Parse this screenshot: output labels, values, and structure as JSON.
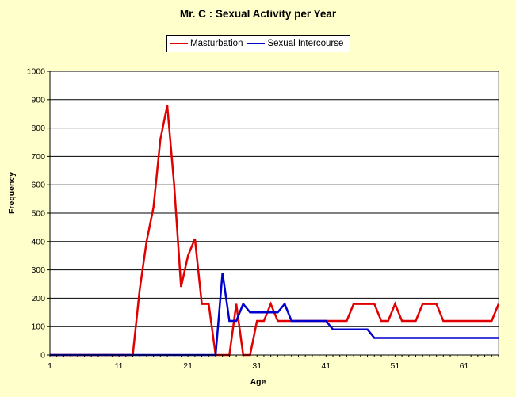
{
  "chart_data": {
    "type": "line",
    "title": "Mr. C :  Sexual Activity per Year",
    "xlabel": "Age",
    "ylabel": "Frequency",
    "xlim": [
      1,
      66
    ],
    "ylim": [
      0,
      1000
    ],
    "x_ticks": [
      1,
      11,
      21,
      31,
      41,
      51,
      61
    ],
    "y_ticks": [
      0,
      100,
      200,
      300,
      400,
      500,
      600,
      700,
      800,
      900,
      1000
    ],
    "y_tick_labels": [
      "0",
      "100",
      "200",
      "300",
      "400",
      "500",
      "600",
      "700",
      "800",
      "900",
      "1000"
    ],
    "grid": "horizontal",
    "legend_position": "top-center",
    "series": [
      {
        "name": "Masturbation",
        "color": "#E00000",
        "x": [
          1,
          2,
          3,
          4,
          5,
          6,
          7,
          8,
          9,
          10,
          11,
          12,
          13,
          14,
          15,
          16,
          17,
          18,
          19,
          20,
          21,
          22,
          23,
          24,
          25,
          26,
          27,
          28,
          29,
          30,
          31,
          32,
          33,
          34,
          35,
          36,
          37,
          38,
          39,
          40,
          41,
          42,
          43,
          44,
          45,
          46,
          47,
          48,
          49,
          50,
          51,
          52,
          53,
          54,
          55,
          56,
          57,
          58,
          59,
          60,
          61,
          62,
          63,
          64,
          65,
          66
        ],
        "values": [
          0,
          0,
          0,
          0,
          0,
          0,
          0,
          0,
          0,
          0,
          0,
          0,
          0,
          230,
          400,
          520,
          760,
          880,
          600,
          240,
          350,
          410,
          180,
          180,
          0,
          0,
          0,
          180,
          0,
          0,
          120,
          120,
          180,
          120,
          120,
          120,
          120,
          120,
          120,
          120,
          120,
          120,
          120,
          120,
          180,
          180,
          180,
          180,
          120,
          120,
          180,
          120,
          120,
          120,
          180,
          180,
          180,
          120,
          120,
          120,
          120,
          120,
          120,
          120,
          120,
          180
        ]
      },
      {
        "name": "Sexual Intercourse",
        "color": "#0000CC",
        "x": [
          1,
          2,
          3,
          4,
          5,
          6,
          7,
          8,
          9,
          10,
          11,
          12,
          13,
          14,
          15,
          16,
          17,
          18,
          19,
          20,
          21,
          22,
          23,
          24,
          25,
          26,
          27,
          28,
          29,
          30,
          31,
          32,
          33,
          34,
          35,
          36,
          37,
          38,
          39,
          40,
          41,
          42,
          43,
          44,
          45,
          46,
          47,
          48,
          49,
          50,
          51,
          52,
          53,
          54,
          55,
          56,
          57,
          58,
          59,
          60,
          61,
          62,
          63,
          64,
          65,
          66
        ],
        "values": [
          0,
          0,
          0,
          0,
          0,
          0,
          0,
          0,
          0,
          0,
          0,
          0,
          0,
          0,
          0,
          0,
          0,
          0,
          0,
          0,
          0,
          0,
          0,
          0,
          0,
          290,
          120,
          120,
          180,
          150,
          150,
          150,
          150,
          150,
          180,
          120,
          120,
          120,
          120,
          120,
          120,
          90,
          90,
          90,
          90,
          90,
          90,
          60,
          60,
          60,
          60,
          60,
          60,
          60,
          60,
          60,
          60,
          60,
          60,
          60,
          60,
          60,
          60,
          60,
          60,
          60
        ]
      }
    ]
  }
}
